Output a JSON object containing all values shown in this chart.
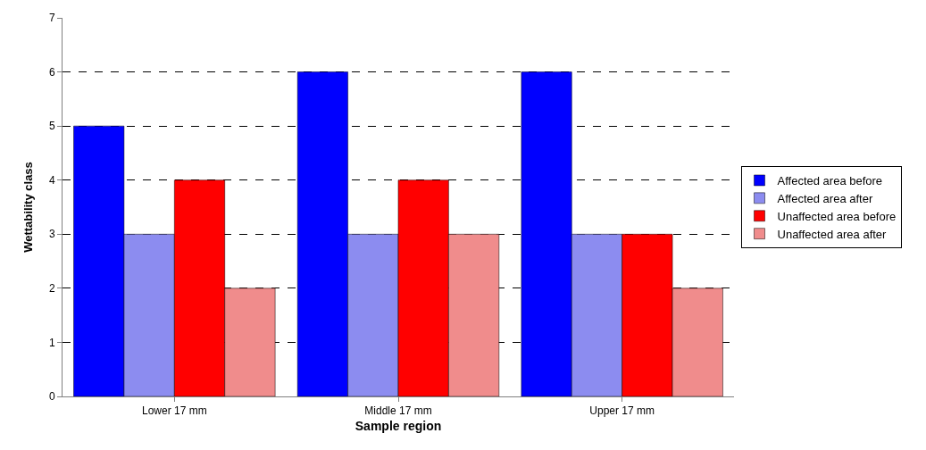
{
  "chart_data": {
    "type": "bar",
    "xlabel": "Sample region",
    "ylabel": "Wettability class",
    "categories": [
      "Lower 17 mm",
      "Middle 17 mm",
      "Upper 17 mm"
    ],
    "series": [
      {
        "name": "Affected area before",
        "color": "#0000ff",
        "values": [
          5,
          6,
          6
        ]
      },
      {
        "name": "Affected area after",
        "color": "#8c8cf0",
        "values": [
          3,
          3,
          3
        ]
      },
      {
        "name": "Unaffected area before",
        "color": "#ff0000",
        "values": [
          4,
          4,
          3
        ]
      },
      {
        "name": "Unaffected area after",
        "color": "#f08c8c",
        "values": [
          2,
          3,
          2
        ]
      }
    ],
    "ylim": [
      0,
      7
    ],
    "yticks": [
      0,
      1,
      2,
      3,
      4,
      5,
      6,
      7
    ],
    "grid": "y",
    "legend": "right"
  }
}
